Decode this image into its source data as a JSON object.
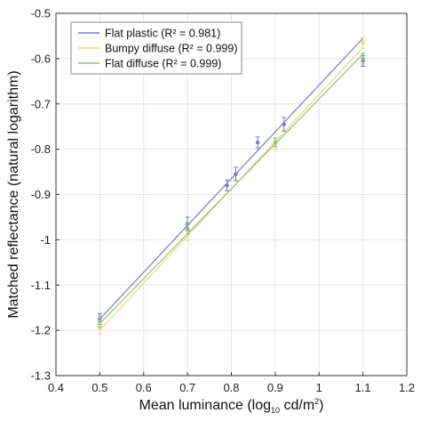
{
  "chart_data": {
    "type": "scatter",
    "xlabel_parts": {
      "main": "Mean luminance (log",
      "sub": "10",
      "unit": " cd/m",
      "sup": "2",
      "end": ")"
    },
    "ylabel": "Matched reflectance (natural logarithm)",
    "xlim": [
      0.4,
      1.2
    ],
    "ylim": [
      -1.3,
      -0.5
    ],
    "xticks": [
      0.4,
      0.5,
      0.6,
      0.7,
      0.8,
      0.9,
      1,
      1.1,
      1.2
    ],
    "xtick_labels": [
      "0.4",
      "0.5",
      "0.6",
      "0.7",
      "0.8",
      "0.9",
      "1",
      "1.1",
      "1.2"
    ],
    "yticks": [
      -1.3,
      -1.2,
      -1.1,
      -1.0,
      -0.9,
      -0.8,
      -0.7,
      -0.6,
      -0.5
    ],
    "ytick_labels": [
      "-1.3",
      "-1.2",
      "-1.1",
      "-1",
      "-0.9",
      "-0.8",
      "-0.7",
      "-0.6",
      "-0.5"
    ],
    "grid": true,
    "legend_position": "top-left",
    "series": [
      {
        "name": "Flat plastic",
        "r2": "0.981",
        "legend_label": "Flat plastic (R² = 0.981)",
        "color": "#7b78c8",
        "x": [
          0.5,
          0.7,
          0.79,
          0.81,
          0.86,
          0.92,
          1.1
        ],
        "y": [
          -1.175,
          -0.965,
          -0.88,
          -0.855,
          -0.785,
          -0.745,
          -0.605
        ],
        "err": [
          0.012,
          0.015,
          0.012,
          0.015,
          0.012,
          0.015,
          0.012
        ],
        "fit": {
          "x": [
            0.5,
            1.1
          ],
          "y": [
            -1.175,
            -0.555
          ]
        }
      },
      {
        "name": "Bumpy diffuse",
        "r2": "0.999",
        "legend_label": "Bumpy diffuse (R² = 0.999)",
        "color": "#e6dc7a",
        "x": [
          0.5,
          0.7,
          0.9,
          1.1
        ],
        "y": [
          -1.195,
          -0.99,
          -0.79,
          -0.565
        ],
        "err": [
          0.012,
          0.012,
          0.012,
          0.012
        ],
        "fit": {
          "x": [
            0.5,
            1.1
          ],
          "y": [
            -1.2,
            -0.575
          ]
        }
      },
      {
        "name": "Flat diffuse",
        "r2": "0.999",
        "legend_label": "Flat diffuse (R² = 0.999)",
        "color": "#9ab882",
        "x": [
          0.5,
          0.7,
          0.9,
          1.1
        ],
        "y": [
          -1.18,
          -0.975,
          -0.785,
          -0.6
        ],
        "err": [
          0.012,
          0.012,
          0.01,
          0.012
        ],
        "fit": {
          "x": [
            0.5,
            1.1
          ],
          "y": [
            -1.185,
            -0.59
          ]
        }
      }
    ]
  }
}
